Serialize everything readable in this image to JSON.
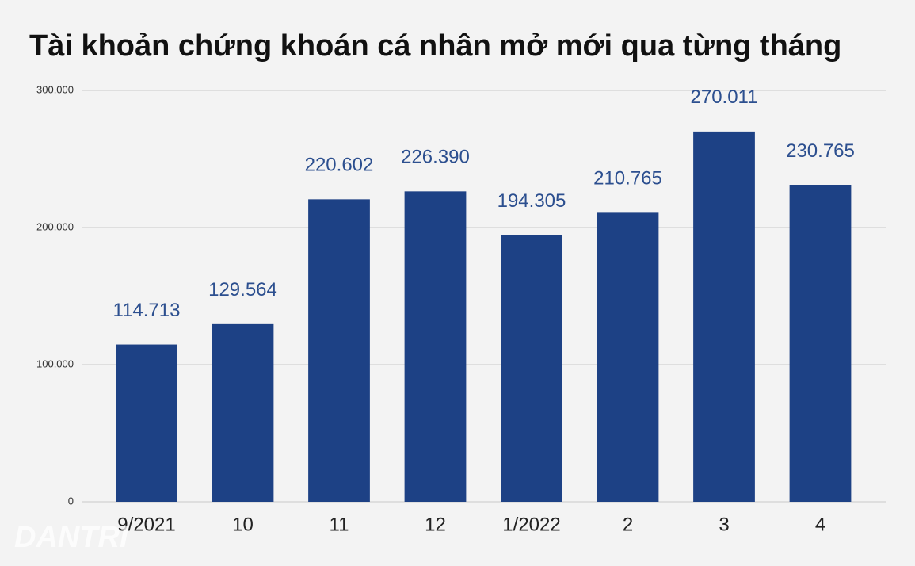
{
  "chart_data": {
    "type": "bar",
    "title": "Tài khoản chứng khoán cá nhân mở mới qua từng tháng",
    "categories": [
      "9/2021",
      "10",
      "11",
      "12",
      "1/2022",
      "2",
      "3",
      "4"
    ],
    "values": [
      114713,
      129564,
      220602,
      226390,
      194305,
      210765,
      270011,
      230765
    ],
    "value_labels": [
      "114.713",
      "129.564",
      "220.602",
      "226.390",
      "194.305",
      "210.765",
      "270.011",
      "230.765"
    ],
    "color": "#1d4185",
    "ylim": [
      0,
      300000
    ],
    "yticks": [
      0,
      {
        "value": 100000,
        "label": "100.000"
      },
      {
        "value": 200000,
        "label": "200.000"
      },
      {
        "value": 300000,
        "label": "300.000"
      }
    ],
    "grid": true,
    "watermark": "DANTRI"
  }
}
